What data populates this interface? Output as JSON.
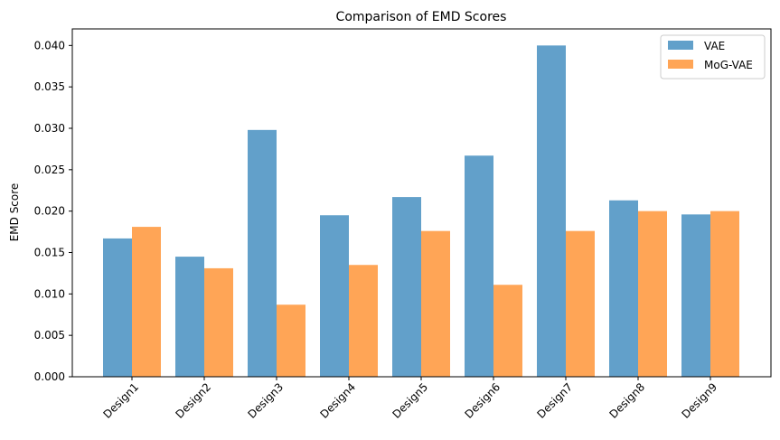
{
  "chart_data": {
    "type": "bar",
    "title": "Comparison of EMD Scores",
    "xlabel": "",
    "ylabel": "EMD Score",
    "categories": [
      "Design1",
      "Design2",
      "Design3",
      "Design4",
      "Design5",
      "Design6",
      "Design7",
      "Design8",
      "Design9"
    ],
    "series": [
      {
        "name": "VAE",
        "color": "#1f77b4",
        "values": [
          0.0167,
          0.0145,
          0.0298,
          0.0195,
          0.0217,
          0.0267,
          0.04,
          0.0213,
          0.0196
        ]
      },
      {
        "name": "MoG-VAE",
        "color": "#ff7f0e",
        "values": [
          0.0181,
          0.0131,
          0.0087,
          0.0135,
          0.0176,
          0.0111,
          0.0176,
          0.02,
          0.02
        ]
      }
    ],
    "ylim": [
      0,
      0.042
    ],
    "yticks": [
      "0.000",
      "0.005",
      "0.010",
      "0.015",
      "0.020",
      "0.025",
      "0.030",
      "0.035",
      "0.040"
    ],
    "legend_position": "top-right",
    "grid": false,
    "bar_opacity": 0.7
  }
}
